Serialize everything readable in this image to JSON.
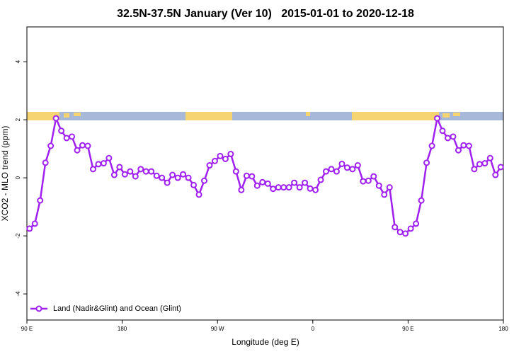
{
  "chart_data": {
    "type": "line",
    "title": "32.5N-37.5N January (Ver 10)   2015-01-01 to 2020-12-18",
    "x_label": "Longitude (deg E)",
    "y_label": "XCO2 - MLO trend (ppm)",
    "xlim": [
      90,
      540
    ],
    "xticks": [
      {
        "value": 90,
        "label": "90 E"
      },
      {
        "value": 180,
        "label": "180"
      },
      {
        "value": 270,
        "label": "90 W"
      },
      {
        "value": 360,
        "label": "0"
      },
      {
        "value": 450,
        "label": "90 E"
      },
      {
        "value": 540,
        "label": "180"
      }
    ],
    "ylim": [
      -4.9,
      5.2
    ],
    "yticks": [
      -4,
      -2,
      0,
      2,
      4
    ],
    "legend": "bottom-left",
    "x": [
      92.5,
      97.5,
      102.5,
      107.5,
      112.5,
      117.5,
      122.5,
      127.5,
      132.5,
      137.5,
      142.5,
      147.5,
      152.5,
      157.5,
      162.5,
      167.5,
      172.5,
      177.5,
      182.5,
      187.5,
      192.5,
      197.5,
      202.5,
      207.5,
      212.5,
      217.5,
      222.5,
      227.5,
      232.5,
      237.5,
      242.5,
      247.5,
      252.5,
      257.5,
      262.5,
      267.5,
      272.5,
      277.5,
      282.5,
      287.5,
      292.5,
      297.5,
      302.5,
      307.5,
      312.5,
      317.5,
      322.5,
      327.5,
      332.5,
      337.5,
      342.5,
      347.5,
      352.5,
      357.5,
      362.5,
      367.5,
      372.5,
      377.5,
      382.5,
      387.5,
      392.5,
      397.5,
      402.5,
      407.5,
      412.5,
      417.5,
      422.5,
      427.5,
      432.5,
      437.5,
      442.5,
      447.5,
      452.5,
      457.5,
      462.5,
      467.5,
      472.5,
      477.5,
      482.5,
      487.5,
      492.5,
      497.5,
      502.5,
      507.5,
      512.5,
      517.5,
      522.5,
      527.5,
      532.5,
      537.5
    ],
    "series": [
      {
        "name": "Land (Nadir&Glint) and Ocean (Glint)",
        "color": "#a020f0",
        "values": [
          -1.75,
          -1.58,
          -0.78,
          0.52,
          1.1,
          2.05,
          1.62,
          1.37,
          1.42,
          0.95,
          1.12,
          1.1,
          0.3,
          0.47,
          0.5,
          0.68,
          0.1,
          0.37,
          0.12,
          0.22,
          0.05,
          0.3,
          0.22,
          0.22,
          0.07,
          0,
          -0.17,
          0.1,
          0,
          0.12,
          0,
          -0.25,
          -0.58,
          -0.1,
          0.43,
          0.58,
          0.75,
          0.65,
          0.82,
          0.22,
          -0.42,
          0.07,
          0.05,
          -0.27,
          -0.15,
          -0.2,
          -0.38,
          -0.33,
          -0.33,
          -0.33,
          -0.17,
          -0.33,
          -0.17,
          -0.37,
          -0.42,
          -0.07,
          0.22,
          0.3,
          0.22,
          0.48,
          0.35,
          0.3,
          0.43,
          -0.12,
          -0.1,
          0.05,
          -0.27,
          -0.58,
          -0.33,
          -1.7,
          -1.87,
          -1.92,
          -1.75,
          -1.58,
          -0.78,
          0.52,
          1.1,
          2.05,
          1.62,
          1.37,
          1.42,
          0.95,
          1.12,
          1.1,
          0.3,
          0.47,
          0.5,
          0.68,
          0.1,
          0.37
        ]
      }
    ]
  }
}
